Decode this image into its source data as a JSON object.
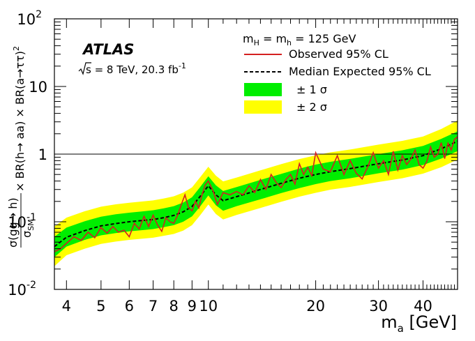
{
  "chart_data": {
    "type": "line",
    "title": "ATLAS",
    "subtitle_sqrt": "s",
    "subtitle_rest": " = 8 TeV, 20.3 fb",
    "subtitle_sup": "-1",
    "xlabel_main": "m",
    "xlabel_sub": "a",
    "xlabel_unit": " [GeV]",
    "ylabel": {
      "num_pre": "σ(gg",
      "num_arrow": "→",
      "num_post": " h)",
      "den_main": "σ",
      "den_sub": "SM",
      "rest_pre": " × BR(h",
      "rest_arrow": "→",
      "rest_mid": " aa) × BR(a",
      "rest_arrow2": "→",
      "rest_tt": "ττ)",
      "rest_sup": "2"
    },
    "xscale": "log",
    "yscale": "log",
    "xlim": [
      3.7,
      50
    ],
    "ylim": [
      0.01,
      100
    ],
    "x_ticks": [
      4,
      5,
      6,
      7,
      8,
      9,
      10,
      20,
      30,
      40
    ],
    "x_tick_labels": [
      "4",
      "5",
      "6",
      "7",
      "8",
      "9",
      "10",
      "20",
      "30",
      "40"
    ],
    "y_ticks": [
      {
        "value": 0.01,
        "base": "10",
        "exp": "-2"
      },
      {
        "value": 0.1,
        "base": "10",
        "exp": "-1"
      },
      {
        "value": 1,
        "base": "1",
        "exp": ""
      },
      {
        "value": 10,
        "base": "10",
        "exp": ""
      },
      {
        "value": 100,
        "base": "10",
        "exp": "2"
      }
    ],
    "reference_line": 1,
    "legend": {
      "header_pre": "m",
      "header_sub1": "H",
      "header_mid": " = m",
      "header_sub2": "h",
      "header_post": " = 125 GeV",
      "entries": [
        {
          "key": "observed",
          "label": "Observed 95% CL"
        },
        {
          "key": "expected",
          "label": "Median Expected 95% CL"
        },
        {
          "key": "band1",
          "label": "± 1 σ"
        },
        {
          "key": "band2",
          "label": "± 2 σ"
        }
      ]
    },
    "colors": {
      "observed": "#d42020",
      "expected": "#000000",
      "band1": "#00ee00",
      "band2": "#ffff00",
      "reference": "#000000"
    },
    "x": [
      3.7,
      4.0,
      4.5,
      5.0,
      5.5,
      6.0,
      6.5,
      7.0,
      7.5,
      8.0,
      8.5,
      9.0,
      9.5,
      10.0,
      10.5,
      11.0,
      12.0,
      14.0,
      16.0,
      18.0,
      20.0,
      22.0,
      25.0,
      30.0,
      35.0,
      40.0,
      45.0,
      50.0
    ],
    "expected": [
      0.043,
      0.059,
      0.074,
      0.087,
      0.094,
      0.1,
      0.104,
      0.108,
      0.115,
      0.124,
      0.14,
      0.168,
      0.24,
      0.34,
      0.25,
      0.205,
      0.235,
      0.3,
      0.37,
      0.44,
      0.5,
      0.55,
      0.61,
      0.72,
      0.82,
      0.95,
      1.2,
      1.55
    ],
    "band1_low": [
      0.03,
      0.043,
      0.054,
      0.063,
      0.068,
      0.072,
      0.075,
      0.078,
      0.083,
      0.089,
      0.1,
      0.12,
      0.17,
      0.245,
      0.175,
      0.145,
      0.17,
      0.215,
      0.265,
      0.315,
      0.36,
      0.4,
      0.44,
      0.52,
      0.59,
      0.69,
      0.86,
      1.11
    ],
    "band1_high": [
      0.06,
      0.082,
      0.102,
      0.119,
      0.129,
      0.136,
      0.142,
      0.148,
      0.158,
      0.17,
      0.192,
      0.23,
      0.33,
      0.47,
      0.345,
      0.285,
      0.325,
      0.415,
      0.51,
      0.61,
      0.7,
      0.77,
      0.85,
      1.0,
      1.14,
      1.32,
      1.68,
      2.17
    ],
    "band2_low": [
      0.022,
      0.032,
      0.04,
      0.047,
      0.051,
      0.054,
      0.056,
      0.058,
      0.062,
      0.066,
      0.074,
      0.089,
      0.126,
      0.18,
      0.13,
      0.108,
      0.126,
      0.16,
      0.197,
      0.235,
      0.268,
      0.298,
      0.328,
      0.387,
      0.44,
      0.515,
      0.64,
      0.83
    ],
    "band2_high": [
      0.085,
      0.115,
      0.143,
      0.167,
      0.181,
      0.191,
      0.199,
      0.207,
      0.221,
      0.238,
      0.269,
      0.322,
      0.46,
      0.65,
      0.48,
      0.395,
      0.45,
      0.575,
      0.71,
      0.845,
      0.96,
      1.06,
      1.17,
      1.38,
      1.57,
      1.82,
      2.35,
      3.15
    ],
    "observed_x": [
      3.7,
      3.85,
      4.0,
      4.2,
      4.4,
      4.6,
      4.8,
      5.0,
      5.2,
      5.4,
      5.6,
      5.8,
      6.0,
      6.2,
      6.4,
      6.6,
      6.8,
      7.0,
      7.2,
      7.4,
      7.6,
      7.8,
      8.0,
      8.2,
      8.4,
      8.6,
      8.8,
      9.0,
      9.2,
      9.4,
      9.6,
      9.8,
      10.0,
      10.3,
      10.6,
      11.0,
      11.5,
      12.0,
      12.5,
      13.0,
      13.5,
      14.0,
      14.5,
      15.0,
      15.5,
      16.0,
      16.5,
      17.0,
      17.5,
      18.0,
      18.5,
      19.0,
      19.5,
      20.0,
      21.0,
      22.0,
      23.0,
      24.0,
      25.0,
      26.0,
      27.0,
      28.0,
      29.0,
      30.0,
      31.0,
      32.0,
      33.0,
      34.0,
      35.0,
      36.0,
      37.0,
      38.0,
      39.0,
      40.0,
      41.0,
      42.0,
      43.0,
      44.0,
      45.0,
      46.0,
      47.0,
      48.0,
      49.0,
      50.0
    ],
    "observed": [
      0.036,
      0.04,
      0.048,
      0.06,
      0.053,
      0.07,
      0.058,
      0.082,
      0.068,
      0.085,
      0.07,
      0.075,
      0.06,
      0.095,
      0.078,
      0.12,
      0.085,
      0.125,
      0.09,
      0.072,
      0.115,
      0.1,
      0.095,
      0.125,
      0.18,
      0.25,
      0.16,
      0.145,
      0.2,
      0.16,
      0.25,
      0.35,
      0.4,
      0.29,
      0.18,
      0.27,
      0.25,
      0.28,
      0.25,
      0.34,
      0.27,
      0.42,
      0.3,
      0.5,
      0.38,
      0.32,
      0.42,
      0.5,
      0.36,
      0.72,
      0.5,
      0.64,
      0.48,
      1.05,
      0.6,
      0.55,
      0.95,
      0.5,
      0.8,
      0.52,
      0.43,
      0.65,
      1.05,
      0.62,
      0.8,
      0.5,
      1.1,
      0.58,
      0.95,
      0.7,
      0.85,
      1.15,
      0.7,
      0.62,
      0.78,
      1.28,
      0.9,
      1.0,
      1.48,
      0.86,
      1.45,
      1.15,
      1.65,
      1.8
    ]
  }
}
